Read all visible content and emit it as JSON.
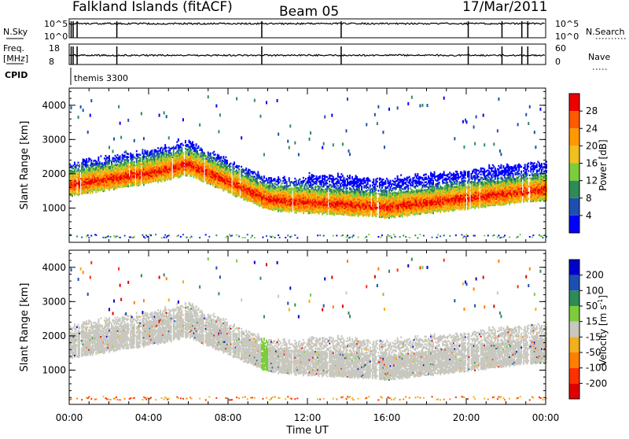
{
  "header": {
    "station": "Falkland Islands (fitACF)",
    "beam": "Beam 05",
    "date": "17/Mar/2011"
  },
  "top_panels": {
    "nsky": {
      "label": "N.Sky",
      "ticks": [
        "10^5",
        "10^0"
      ]
    },
    "nsearch": {
      "label": "N.Search",
      "ticks": [
        "10^5",
        "10^0"
      ]
    },
    "freq": {
      "label_line1": "Freq.",
      "label_line2": "[MHz]",
      "ticks": [
        "18",
        "8"
      ]
    },
    "nave": {
      "label": "Nave",
      "ticks": [
        "60",
        "0"
      ]
    },
    "cpid": {
      "label": "CPID",
      "value": "themis 3300"
    }
  },
  "chart_data": [
    {
      "type": "heatmap",
      "xlabel": "",
      "ylabel": "Slant Range [km]",
      "yticks": [
        "1000",
        "2000",
        "3000",
        "4000"
      ],
      "ylim": [
        0,
        4500
      ],
      "colorbar": {
        "label": "Power [dB]",
        "ticks": [
          "4",
          "8",
          "12",
          "16",
          "20",
          "24",
          "28"
        ],
        "colors": [
          "#0000ff",
          "#1e4fb0",
          "#2e8b57",
          "#7ccd3c",
          "#f0c020",
          "#ff9900",
          "#ff5a00",
          "#ee0000"
        ]
      }
    },
    {
      "type": "heatmap",
      "xlabel": "Time UT",
      "ylabel": "Slant Range [km]",
      "xticks": [
        "00:00",
        "04:00",
        "08:00",
        "12:00",
        "16:00",
        "20:00",
        "00:00"
      ],
      "yticks": [
        "1000",
        "2000",
        "3000",
        "4000"
      ],
      "ylim": [
        0,
        4500
      ],
      "colorbar": {
        "label_main": "Velocity",
        "label_unit": "[m s",
        "label_sup": "-1",
        "label_close": "]",
        "ticks": [
          "200",
          "100",
          "50",
          "15",
          "-15",
          "-50",
          "-100",
          "-200"
        ],
        "colors": [
          "#0000cc",
          "#1e4fb0",
          "#2e8b57",
          "#7ccd3c",
          "#c8c8c0",
          "#f0b020",
          "#ff7f00",
          "#ff3000",
          "#e00000"
        ]
      }
    }
  ]
}
